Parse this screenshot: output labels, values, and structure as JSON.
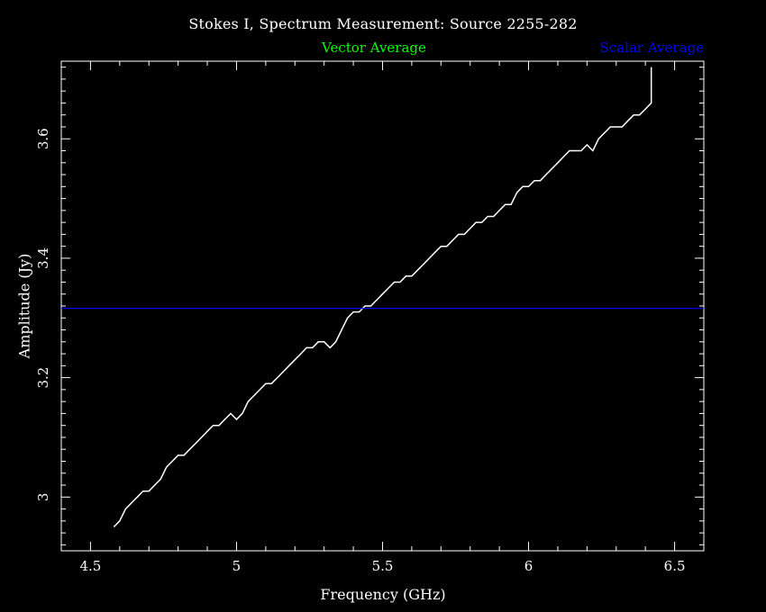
{
  "chart_data": {
    "type": "line",
    "title": "Stokes I, Spectrum Measurement: Source 2255-282",
    "xlabel": "Frequency (GHz)",
    "ylabel": "Amplitude (Jy)",
    "xlim": [
      4.4,
      6.6
    ],
    "ylim": [
      2.91,
      3.73
    ],
    "xticks": [
      "4.5",
      "5",
      "5.5",
      "6",
      "6.5"
    ],
    "xtick_values": [
      4.5,
      5.0,
      5.5,
      6.0,
      6.5
    ],
    "yticks": [
      "3",
      "3.2",
      "3.4",
      "3.6"
    ],
    "ytick_values": [
      3.0,
      3.2,
      3.4,
      3.6
    ],
    "legend": [
      {
        "name": "Vector Average",
        "color": "#00ff00"
      },
      {
        "name": "Scalar Average",
        "color": "#0000ff"
      }
    ],
    "series": [
      {
        "name": "Vector Average",
        "color": "#ffffff",
        "x": [
          4.58,
          4.6,
          4.62,
          4.64,
          4.66,
          4.68,
          4.7,
          4.72,
          4.74,
          4.76,
          4.78,
          4.8,
          4.82,
          4.84,
          4.86,
          4.88,
          4.9,
          4.92,
          4.94,
          4.96,
          4.98,
          5.0,
          5.02,
          5.04,
          5.06,
          5.08,
          5.1,
          5.12,
          5.14,
          5.16,
          5.18,
          5.2,
          5.22,
          5.24,
          5.26,
          5.28,
          5.3,
          5.32,
          5.34,
          5.36,
          5.38,
          5.4,
          5.42,
          5.44,
          5.46,
          5.48,
          5.5,
          5.52,
          5.54,
          5.56,
          5.58,
          5.6,
          5.62,
          5.64,
          5.66,
          5.68,
          5.7,
          5.72,
          5.74,
          5.76,
          5.78,
          5.8,
          5.82,
          5.84,
          5.86,
          5.88,
          5.9,
          5.92,
          5.94,
          5.96,
          5.98,
          6.0,
          6.02,
          6.04,
          6.06,
          6.08,
          6.1,
          6.12,
          6.14,
          6.16,
          6.18,
          6.2,
          6.22,
          6.24,
          6.26,
          6.28,
          6.3,
          6.32,
          6.34,
          6.36,
          6.38,
          6.4,
          6.42,
          6.42
        ],
        "y": [
          2.95,
          2.96,
          2.98,
          2.99,
          3.0,
          3.01,
          3.01,
          3.02,
          3.03,
          3.05,
          3.06,
          3.07,
          3.07,
          3.08,
          3.09,
          3.1,
          3.11,
          3.12,
          3.12,
          3.13,
          3.14,
          3.13,
          3.14,
          3.16,
          3.17,
          3.18,
          3.19,
          3.19,
          3.2,
          3.21,
          3.22,
          3.23,
          3.24,
          3.25,
          3.25,
          3.26,
          3.26,
          3.25,
          3.26,
          3.28,
          3.3,
          3.31,
          3.31,
          3.32,
          3.32,
          3.33,
          3.34,
          3.35,
          3.36,
          3.36,
          3.37,
          3.37,
          3.38,
          3.39,
          3.4,
          3.41,
          3.42,
          3.42,
          3.43,
          3.44,
          3.44,
          3.45,
          3.46,
          3.46,
          3.47,
          3.47,
          3.48,
          3.49,
          3.49,
          3.51,
          3.52,
          3.52,
          3.53,
          3.53,
          3.54,
          3.55,
          3.56,
          3.57,
          3.58,
          3.58,
          3.58,
          3.59,
          3.58,
          3.6,
          3.61,
          3.62,
          3.62,
          3.62,
          3.63,
          3.64,
          3.64,
          3.65,
          3.66,
          3.72
        ]
      },
      {
        "name": "Scalar Average",
        "color": "#0000ff",
        "x": [
          4.4,
          6.6
        ],
        "y": [
          3.316,
          3.316
        ]
      }
    ],
    "grid": false
  }
}
